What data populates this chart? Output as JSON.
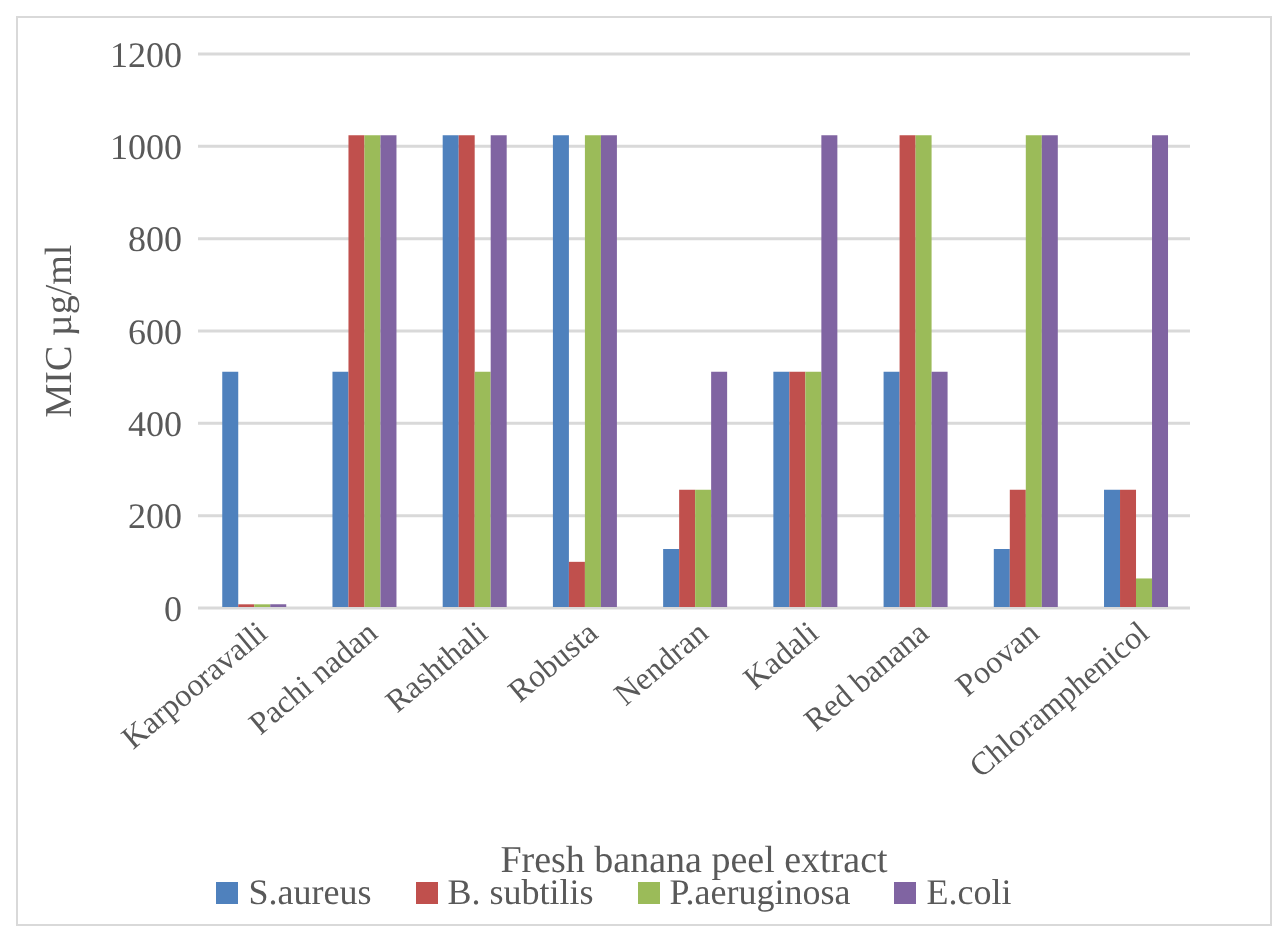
{
  "chart_data": {
    "type": "bar",
    "xlabel": "Fresh banana peel extract",
    "ylabel": "MIC µg/ml",
    "categories": [
      "Karpooravalli",
      "Pachi nadan",
      "Rashthali",
      "Robusta",
      "Nendran",
      "Kadali",
      "Red banana",
      "Poovan",
      "Chloramphenicol"
    ],
    "series": [
      {
        "name": "S.aureus",
        "color": "#4f81bd",
        "values": [
          512,
          512,
          1024,
          1024,
          128,
          512,
          512,
          128,
          256
        ]
      },
      {
        "name": "B. subtilis",
        "color": "#c0504d",
        "values": [
          8,
          1024,
          1024,
          100,
          256,
          512,
          1024,
          256,
          256
        ]
      },
      {
        "name": "P.aeruginosa",
        "color": "#9bbb59",
        "values": [
          8,
          1024,
          512,
          1024,
          256,
          512,
          1024,
          1024,
          64
        ]
      },
      {
        "name": "E.coli",
        "color": "#8064a2",
        "values": [
          8,
          1024,
          1024,
          1024,
          512,
          1024,
          512,
          1024,
          1024
        ]
      }
    ],
    "ylim": [
      0,
      1200
    ],
    "yticks": [
      0,
      200,
      400,
      600,
      800,
      1000,
      1200
    ],
    "grid": "y",
    "legend": "bottom"
  }
}
